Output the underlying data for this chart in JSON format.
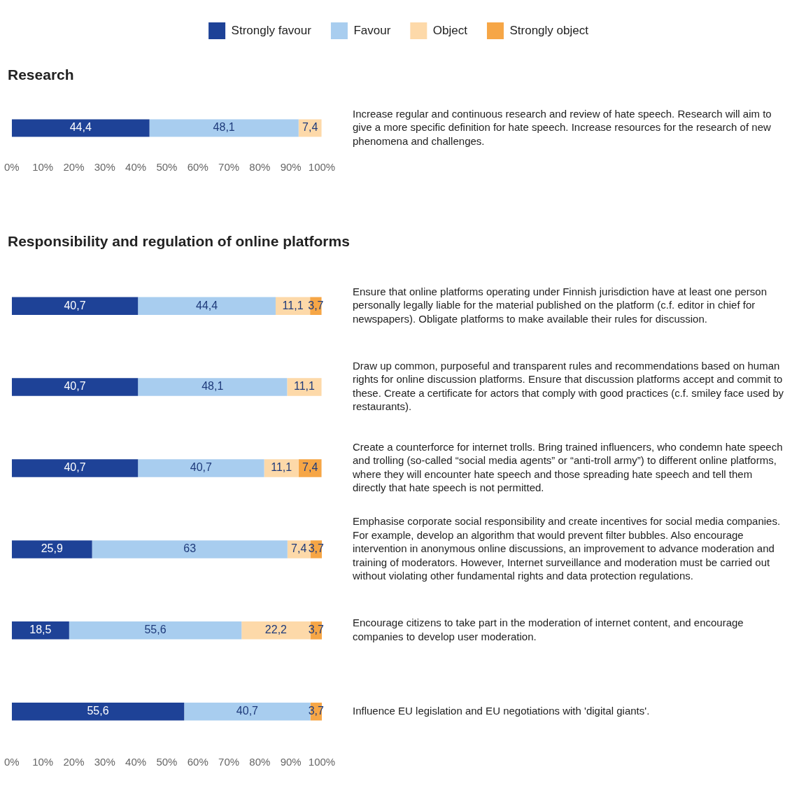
{
  "chart_data": [
    {
      "type": "bar",
      "orientation": "horizontal",
      "stacked": true,
      "title": "Research",
      "legend": "top",
      "xlim": [
        0,
        100
      ],
      "xticks": [
        {
          "value": 0,
          "label": "0%"
        },
        {
          "value": 10,
          "label": "10%"
        },
        {
          "value": 20,
          "label": "20%"
        },
        {
          "value": 30,
          "label": "30%"
        },
        {
          "value": 40,
          "label": "40%"
        },
        {
          "value": 50,
          "label": "50%"
        },
        {
          "value": 60,
          "label": "60%"
        },
        {
          "value": 70,
          "label": "70%"
        },
        {
          "value": 80,
          "label": "80%"
        },
        {
          "value": 90,
          "label": "90%"
        },
        {
          "value": 100,
          "label": "100%"
        }
      ],
      "categories": [
        "Increase regular and continuous research and review of hate speech. Research will aim to give a more specific definition for hate speech. Increase resources for the research of new phenomena and challenges."
      ],
      "series": [
        {
          "name": "Strongly favour",
          "color": "#1e4297",
          "values": [
            44.4
          ],
          "value_labels": [
            "44,4"
          ]
        },
        {
          "name": "Favour",
          "color": "#a8cdef",
          "values": [
            48.1
          ],
          "value_labels": [
            "48,1"
          ]
        },
        {
          "name": "Object",
          "color": "#fdd9a9",
          "values": [
            7.4
          ],
          "value_labels": [
            "7,4"
          ]
        },
        {
          "name": "Strongly object",
          "color": "#f6a646",
          "values": [
            null
          ],
          "value_labels": [
            null
          ]
        }
      ]
    },
    {
      "type": "bar",
      "orientation": "horizontal",
      "stacked": true,
      "title": "Responsibility and regulation of online platforms",
      "xlim": [
        0,
        100
      ],
      "xticks": [
        {
          "value": 0,
          "label": "0%"
        },
        {
          "value": 10,
          "label": "10%"
        },
        {
          "value": 20,
          "label": "20%"
        },
        {
          "value": 30,
          "label": "30%"
        },
        {
          "value": 40,
          "label": "40%"
        },
        {
          "value": 50,
          "label": "50%"
        },
        {
          "value": 60,
          "label": "60%"
        },
        {
          "value": 70,
          "label": "70%"
        },
        {
          "value": 80,
          "label": "80%"
        },
        {
          "value": 90,
          "label": "90%"
        },
        {
          "value": 100,
          "label": "100%"
        }
      ],
      "categories": [
        "Ensure that online platforms operating under Finnish jurisdiction have at least one person personally legally liable for the material published on the platform (c.f. editor in chief for newspapers). Obligate platforms to make available their rules for discussion.",
        "Draw up common, purposeful and transparent rules and recommendations based on human rights for online discussion platforms. Ensure that discussion platforms accept and commit to these. Create a certificate for actors that comply with good practices (c.f. smiley face used by restaurants).",
        "Create a counterforce for internet trolls. Bring trained influencers, who condemn hate speech and trolling (so-called “social media agents” or “anti-troll army”) to different online platforms, where they will encounter hate speech and those spreading hate speech and tell them directly that hate speech is not permitted.",
        "Emphasise corporate social responsibility and create incentives for social media companies. For example, develop an algorithm that would prevent filter bubbles. Also encourage intervention in anonymous online discussions, an improvement to advance moderation and training of moderators. However, Internet surveillance and moderation must be carried out without violating other fundamental rights and data protection regulations.",
        "Encourage citizens to take part in the moderation of internet content, and encourage companies to develop user moderation.",
        "Influence EU legislation and EU negotiations with 'digital giants'."
      ],
      "series": [
        {
          "color": "#1e4297",
          "values": [
            40.7,
            40.7,
            40.7,
            25.9,
            18.5,
            55.6
          ],
          "value_labels": [
            "40,7",
            "40,7",
            "40,7",
            "25,9",
            "18,5",
            "55,6"
          ]
        },
        {
          "color": "#a8cdef",
          "values": [
            44.4,
            48.1,
            40.7,
            63,
            55.6,
            40.7
          ],
          "value_labels": [
            "44,4",
            "48,1",
            "40,7",
            "63",
            "55,6",
            "40,7"
          ]
        },
        {
          "color": "#fdd9a9",
          "values": [
            11.1,
            11.1,
            11.1,
            7.4,
            22.2,
            null
          ],
          "value_labels": [
            "11,1",
            "11,1",
            "11,1",
            "7,4",
            "22,2",
            null
          ]
        },
        {
          "color": "#f6a646",
          "values": [
            3.7,
            null,
            7.4,
            3.7,
            3.7,
            3.7
          ],
          "value_labels": [
            "3,7",
            null,
            "7,4",
            "3,7",
            "3,7",
            "3,7"
          ]
        }
      ]
    }
  ]
}
